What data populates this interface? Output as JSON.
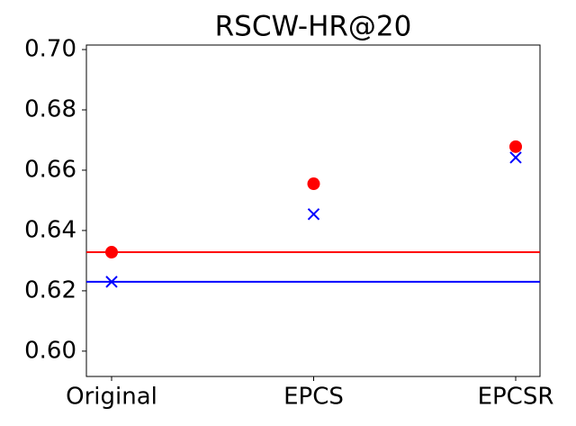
{
  "chart_data": {
    "type": "scatter",
    "title": "RSCW-HR@20",
    "categories": [
      "Original",
      "EPCS",
      "EPCSR"
    ],
    "series": [
      {
        "color": "#ff0000",
        "marker": "circle",
        "baseline": true,
        "values": [
          0.6328,
          0.6555,
          0.6678
        ]
      },
      {
        "color": "#0000ff",
        "marker": "x",
        "baseline": true,
        "values": [
          0.623,
          0.6454,
          0.6642
        ]
      }
    ],
    "ylim": [
      0.5916,
      0.7015
    ],
    "yticks": [
      {
        "value": 0.6,
        "label": "0.60"
      },
      {
        "value": 0.62,
        "label": "0.62"
      },
      {
        "value": 0.64,
        "label": "0.64"
      },
      {
        "value": 0.66,
        "label": "0.66"
      },
      {
        "value": 0.68,
        "label": "0.68"
      },
      {
        "value": 0.7,
        "label": "0.70"
      }
    ]
  }
}
